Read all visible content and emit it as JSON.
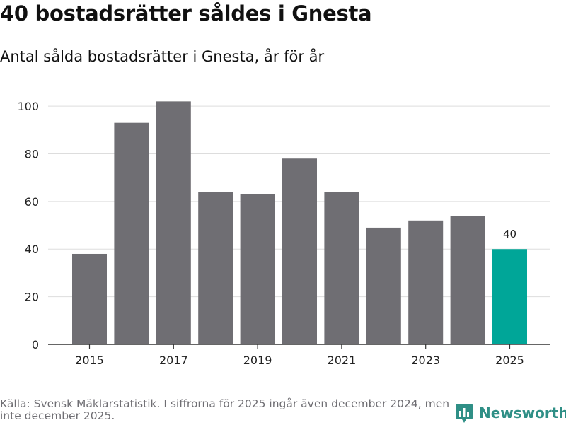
{
  "title": "40 bostadsrätter såldes i Gnesta",
  "subtitle": "Antal sålda bostadsrätter i Gnesta, år för år",
  "colors": {
    "bar": "#6f6e73",
    "highlight": "#00a698",
    "grid": "#dddddd",
    "axis": "#333333"
  },
  "chart_data": {
    "type": "bar",
    "categories": [
      2015,
      2016,
      2017,
      2018,
      2019,
      2020,
      2021,
      2022,
      2023,
      2024,
      2025
    ],
    "values": [
      38,
      93,
      102,
      64,
      63,
      78,
      64,
      49,
      52,
      54,
      40
    ],
    "highlight_index": 10,
    "data_labels": [
      {
        "index": 10,
        "text": "40"
      }
    ],
    "y_ticks": [
      0,
      20,
      40,
      60,
      80,
      100
    ],
    "x_tick_labels": [
      "2015",
      "2017",
      "2019",
      "2021",
      "2023",
      "2025"
    ],
    "ylim": [
      0,
      103
    ],
    "grid": true,
    "xlabel": "",
    "ylabel": ""
  },
  "footer": {
    "source": "Källa: Svensk Mäklarstatistik. I siffrorna för 2025 ingår även december 2024, men inte december 2025.",
    "brand": "Newsworthy",
    "brand_icon": "newsworthy-logo-icon"
  }
}
